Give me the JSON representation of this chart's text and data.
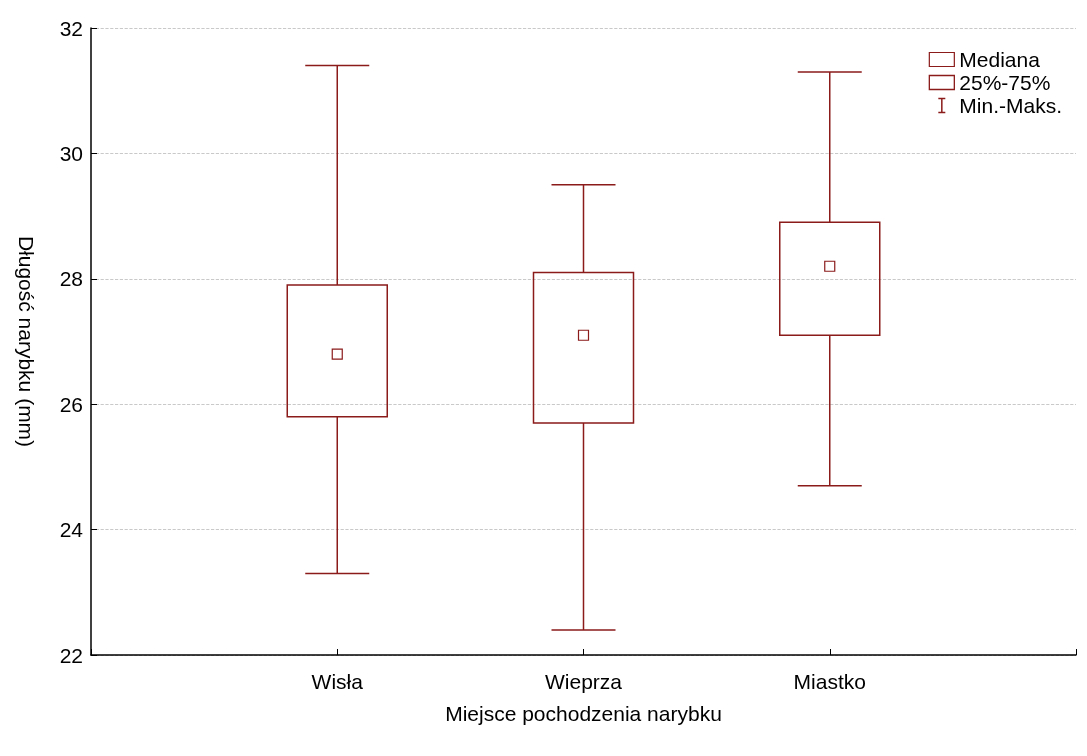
{
  "chart_data": {
    "type": "box",
    "xlabel": "Miejsce pochodzenia narybku",
    "ylabel": "Długość narybku (mm)",
    "categories": [
      "Wisła",
      "Wieprza",
      "Miastko"
    ],
    "series": [
      {
        "name": "25%-75%",
        "color": "#8b1a1a",
        "boxes": [
          {
            "low": 23.3,
            "q1": 25.8,
            "median": 26.8,
            "q3": 27.9,
            "high": 31.4
          },
          {
            "low": 22.4,
            "q1": 25.7,
            "median": 27.1,
            "q3": 28.1,
            "high": 29.5
          },
          {
            "low": 24.7,
            "q1": 27.1,
            "median": 28.2,
            "q3": 28.9,
            "high": 31.3
          }
        ]
      }
    ],
    "annotations": [
      "Mediana",
      "Min.-Maks."
    ],
    "ylim": [
      22,
      32
    ],
    "yticks": [
      22,
      24,
      26,
      28,
      30,
      32
    ],
    "grid": "y",
    "legend": "top right"
  }
}
